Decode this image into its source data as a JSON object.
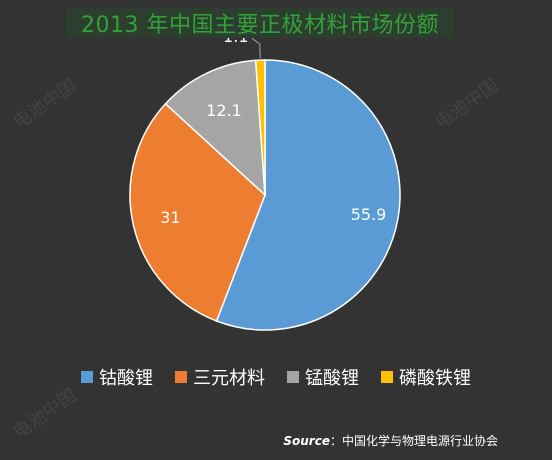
{
  "chart_data": {
    "type": "pie",
    "title": "2013 年中国主要正极材料市场份额",
    "categories": [
      "钴酸锂",
      "三元材料",
      "锰酸锂",
      "磷酸铁锂"
    ],
    "values": [
      55.9,
      31,
      12.1,
      1.1
    ],
    "value_labels": [
      "55.9",
      "31",
      "12.1",
      "1.1"
    ],
    "colors": [
      "#5b9bd5",
      "#ed7d31",
      "#a5a5a5",
      "#ffc000"
    ],
    "legend_position": "bottom",
    "start_angle_deg": 0,
    "direction": "clockwise"
  },
  "source": {
    "key": "Source",
    "separator": "：",
    "text": "中国化学与物理电源行业协会"
  },
  "watermark": {
    "text": "电池中国"
  },
  "colors": {
    "background": "#333333",
    "title_text": "#33a13a",
    "title_box": "#2c3e2d",
    "label_text": "#ffffff",
    "slice_border": "#ffffff"
  }
}
